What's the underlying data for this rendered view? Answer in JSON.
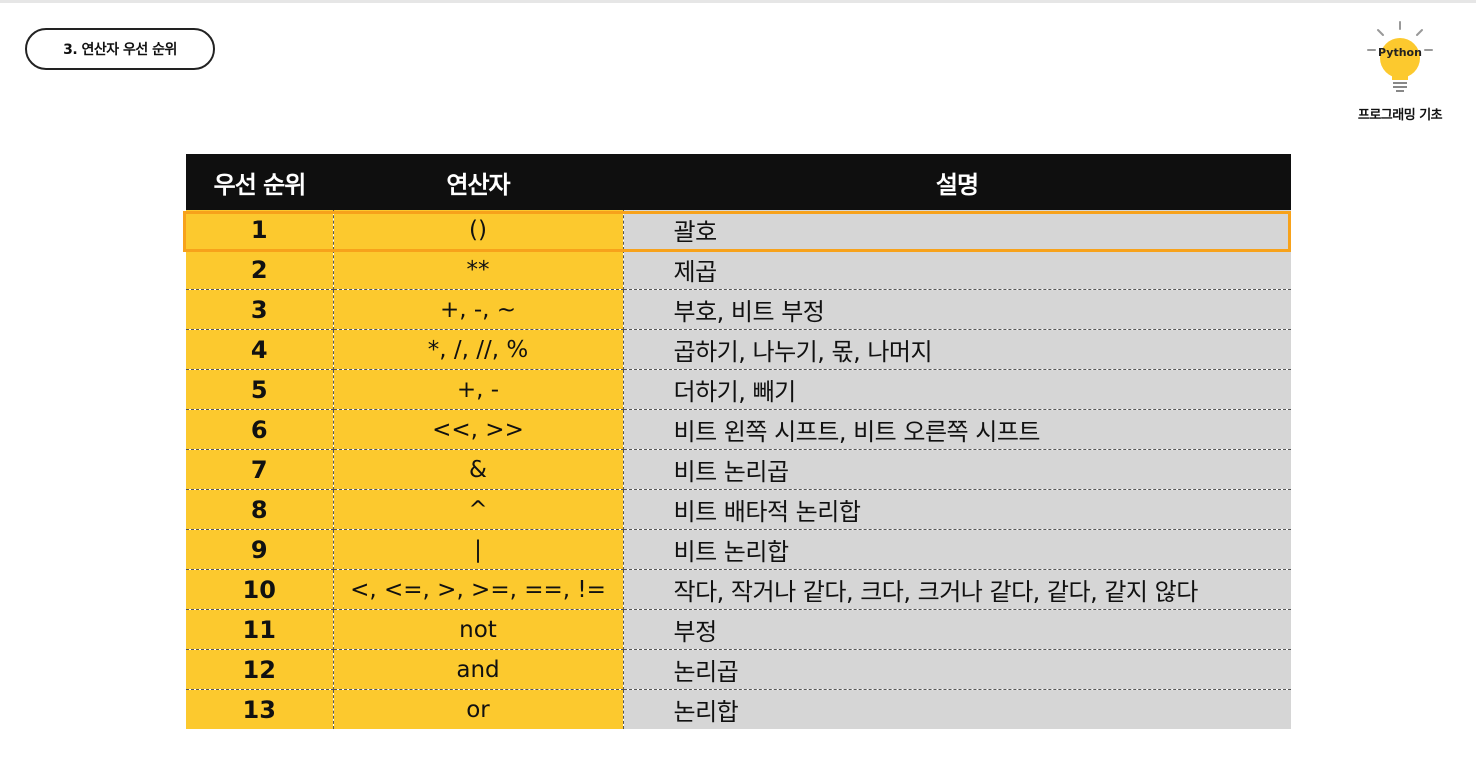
{
  "section_label": "3. 연산자 우선 순위",
  "logo": {
    "text": "Python",
    "caption": "프로그래밍 기초"
  },
  "colors": {
    "yellow": "#fcc92e",
    "header": "#0f0f0f",
    "desc_bg": "#d6d6d6",
    "highlight": "#f7a21b"
  },
  "table": {
    "headers": [
      "우선 순위",
      "연산자",
      "설명"
    ],
    "highlighted_row": 1,
    "rows": [
      {
        "rank": "1",
        "op": "()",
        "desc": "괄호"
      },
      {
        "rank": "2",
        "op": "**",
        "desc": "제곱"
      },
      {
        "rank": "3",
        "op": "+, -, ~",
        "desc": "부호, 비트 부정"
      },
      {
        "rank": "4",
        "op": "*, /, //, %",
        "desc": "곱하기, 나누기, 몫, 나머지"
      },
      {
        "rank": "5",
        "op": "+, -",
        "desc": "더하기, 빼기"
      },
      {
        "rank": "6",
        "op": "<<, >>",
        "desc": "비트 왼쪽 시프트, 비트 오른쪽 시프트"
      },
      {
        "rank": "7",
        "op": "&",
        "desc": "비트 논리곱"
      },
      {
        "rank": "8",
        "op": "^",
        "desc": "비트 배타적 논리합"
      },
      {
        "rank": "9",
        "op": "|",
        "desc": "비트 논리합"
      },
      {
        "rank": "10",
        "op": "<, <=, >, >=, ==, !=",
        "desc": "작다, 작거나 같다, 크다, 크거나 같다, 같다, 같지 않다"
      },
      {
        "rank": "11",
        "op": "not",
        "desc": "부정"
      },
      {
        "rank": "12",
        "op": "and",
        "desc": "논리곱"
      },
      {
        "rank": "13",
        "op": "or",
        "desc": "논리합"
      }
    ]
  }
}
